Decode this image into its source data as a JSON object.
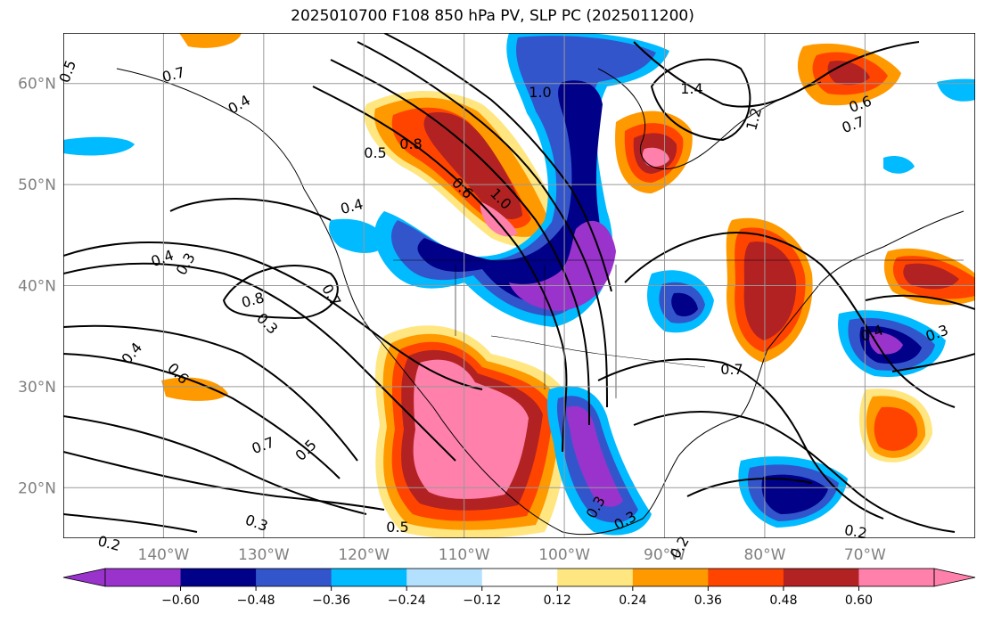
{
  "title": "2025010700 F108 850 hPa PV, SLP PC (2025011200)",
  "map": {
    "lon_range": [
      -150,
      -59
    ],
    "lat_range": [
      15,
      65
    ],
    "lat_ticks": [
      {
        "value": 20,
        "label": "20°N"
      },
      {
        "value": 30,
        "label": "30°N"
      },
      {
        "value": 40,
        "label": "40°N"
      },
      {
        "value": 50,
        "label": "50°N"
      },
      {
        "value": 60,
        "label": "60°N"
      }
    ],
    "lon_ticks": [
      {
        "value": -140,
        "label": "140°W"
      },
      {
        "value": -130,
        "label": "130°W"
      },
      {
        "value": -120,
        "label": "120°W"
      },
      {
        "value": -110,
        "label": "110°W"
      },
      {
        "value": -100,
        "label": "100°W"
      },
      {
        "value": -90,
        "label": "90°W"
      },
      {
        "value": -80,
        "label": "80°W"
      },
      {
        "value": -70,
        "label": "70°W"
      }
    ],
    "grid": true
  },
  "contour_labels": [
    "0.5",
    "0.7",
    "0.4",
    "0.5",
    "0.8",
    "1.0",
    "1.4",
    "1.2",
    "0.6",
    "1.0",
    "0.4",
    "0.3",
    "0.4",
    "0.8",
    "0.7",
    "0.3",
    "0.4",
    "0.6",
    "0.7",
    "0.5",
    "0.3",
    "0.2",
    "0.5",
    "0.7",
    "0.7",
    "0.6",
    "0.4",
    "0.3",
    "0.2",
    "0.3",
    "0.3",
    "0.2"
  ],
  "colorbar": {
    "colors": [
      "#9933cc",
      "#000088",
      "#3355cc",
      "#00bbff",
      "#b3e0ff",
      "#ffffff",
      "#ffe680",
      "#ff9900",
      "#ff4400",
      "#b22222",
      "#ff80aa"
    ],
    "over_color": "#ff80aa",
    "under_color": "#9933cc",
    "ticks": [
      "−0.60",
      "−0.48",
      "−0.36",
      "−0.24",
      "−0.12",
      "0.12",
      "0.24",
      "0.36",
      "0.48",
      "0.60"
    ]
  }
}
